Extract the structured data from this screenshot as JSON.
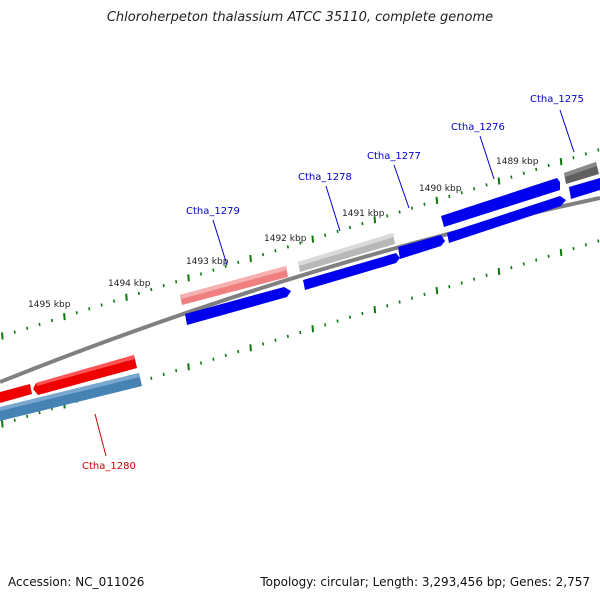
{
  "title": "Chloroherpeton thalassium ATCC 35110, complete genome",
  "footer": {
    "accession": "Accession: NC_011026",
    "summary": "Topology: circular; Length: 3,293,456 bp; Genes: 2,757"
  },
  "colors": {
    "forward_gene": "#0000ee",
    "gray_gene": "#b8b8b8",
    "dark_gray_gene": "#606060",
    "pink_gene": "#f08080",
    "red_gene": "#ee0000",
    "steel_blue_gene": "#4682b4",
    "tick": "#0a7a0a",
    "label_blue": "#0000cc",
    "label_red": "#cc0000"
  },
  "kbp_labels": [
    "1495 kbp",
    "1494 kbp",
    "1493 kbp",
    "1492 kbp",
    "1491 kbp",
    "1490 kbp",
    "1489 kbp"
  ],
  "gene_labels": [
    {
      "name": "Ctha_1275",
      "color": "blue"
    },
    {
      "name": "Ctha_1276",
      "color": "blue"
    },
    {
      "name": "Ctha_1277",
      "color": "blue"
    },
    {
      "name": "Ctha_1278",
      "color": "blue"
    },
    {
      "name": "Ctha_1279",
      "color": "blue"
    },
    {
      "name": "Ctha_1280",
      "color": "red"
    }
  ]
}
